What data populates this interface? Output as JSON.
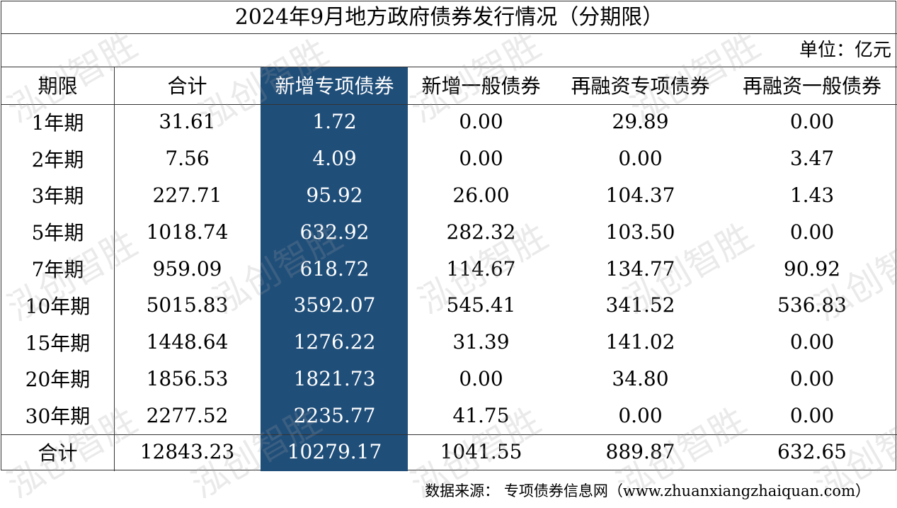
{
  "title": "2024年9月地方政府债券发行情况（分期限）",
  "unit": "单位：亿元",
  "columns": [
    "期限",
    "合计",
    "新增专项债券",
    "新增一般债券",
    "再融资专项债券",
    "再融资一般债券"
  ],
  "rows": [
    [
      "1年期",
      "31.61",
      "1.72",
      "0.00",
      "29.89",
      "0.00"
    ],
    [
      "2年期",
      "7.56",
      "4.09",
      "0.00",
      "0.00",
      "3.47"
    ],
    [
      "3年期",
      "227.71",
      "95.92",
      "26.00",
      "104.37",
      "1.43"
    ],
    [
      "5年期",
      "1018.74",
      "632.92",
      "282.32",
      "103.50",
      "0.00"
    ],
    [
      "7年期",
      "959.09",
      "618.72",
      "114.67",
      "134.77",
      "90.92"
    ],
    [
      "10年期",
      "5015.83",
      "3592.07",
      "545.41",
      "341.52",
      "536.83"
    ],
    [
      "15年期",
      "1448.64",
      "1276.22",
      "31.39",
      "141.02",
      "0.00"
    ],
    [
      "20年期",
      "1856.53",
      "1821.73",
      "0.00",
      "34.80",
      "0.00"
    ],
    [
      "30年期",
      "2277.52",
      "2235.77",
      "41.75",
      "0.00",
      "0.00"
    ]
  ],
  "total": [
    "合计",
    "12843.23",
    "10279.17",
    "1041.55",
    "889.87",
    "632.65"
  ],
  "highlight_color": "#1f4e79",
  "watermark": "泓创智胜",
  "source": "数据来源：  专项债券信息网（www.zhuanxiangzhaiquan.com）"
}
